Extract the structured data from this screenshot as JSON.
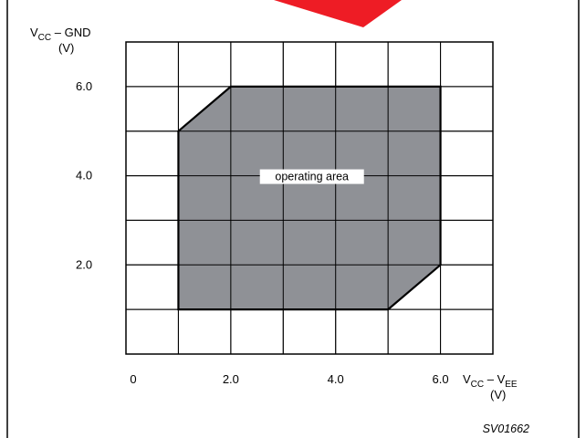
{
  "figure_id": "SV01662",
  "colors": {
    "frame": "#000000",
    "grid": "#000000",
    "area_fill": "#8f9196",
    "area_stroke": "#000000",
    "label_bg": "#ffffff",
    "watermark": "#ee1c25"
  },
  "chart_data": {
    "type": "area",
    "title": "",
    "xlabel": "VCC – VEE",
    "xlabel_unit": "(V)",
    "ylabel": "VCC – GND",
    "ylabel_unit": "(V)",
    "xlim": [
      0,
      7
    ],
    "ylim": [
      0,
      7
    ],
    "grid": true,
    "grid_step": 1,
    "x_ticks": [
      {
        "value": 0,
        "label": "0"
      },
      {
        "value": 2,
        "label": "2.0"
      },
      {
        "value": 4,
        "label": "4.0"
      },
      {
        "value": 6,
        "label": "6.0"
      }
    ],
    "y_ticks": [
      {
        "value": 2,
        "label": "2.0"
      },
      {
        "value": 4,
        "label": "4.0"
      },
      {
        "value": 6,
        "label": "6.0"
      }
    ],
    "region": {
      "name": "operating area",
      "label": "operating area",
      "label_at": [
        4,
        4
      ],
      "polygon": [
        [
          1,
          1
        ],
        [
          1,
          5
        ],
        [
          2,
          6
        ],
        [
          6,
          6
        ],
        [
          6,
          2
        ],
        [
          5,
          1
        ]
      ]
    }
  }
}
